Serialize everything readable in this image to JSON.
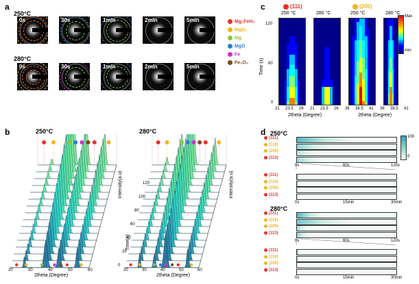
{
  "panels": {
    "a": "a",
    "b": "b",
    "c": "c",
    "d": "d"
  },
  "panel_a": {
    "row1_temp": "250°C",
    "row2_temp": "280°C",
    "row1_times": [
      "0s",
      "30s",
      "1min",
      "2min",
      "5min"
    ],
    "row2_times": [
      "0s",
      "30s",
      "1min",
      "2min",
      "5min"
    ],
    "legend": [
      {
        "label": "Mg₂FeH₆",
        "color": "#e8322b"
      },
      {
        "label": "MgH₂",
        "color": "#f0b51c"
      },
      {
        "label": "Mg",
        "color": "#8cc63f"
      },
      {
        "label": "MgO",
        "color": "#2f7fd0"
      },
      {
        "label": "Fe",
        "color": "#d12fd0"
      },
      {
        "label": "Fe₃O₄",
        "color": "#7b4b1c"
      }
    ]
  },
  "panel_b": {
    "left_temp": "250°C",
    "right_temp": "280°C",
    "xlabel": "2theta (Degree)",
    "ylabel": "Intensity(a.u)",
    "zlabel": "Time(s)",
    "left_xticks": [
      "20",
      "30",
      "40",
      "50",
      "60"
    ],
    "right_xticks": [
      "20",
      "30",
      "40",
      "50",
      "60"
    ],
    "time_ticks": [
      "0",
      "20",
      "40",
      "60",
      "80",
      "100",
      "120"
    ]
  },
  "panel_c": {
    "legend_111": "(111)",
    "legend_200": "(200)",
    "temps": [
      "250 °C",
      "280 °C",
      "250 °C",
      "280 °C"
    ],
    "ylabel": "Time (s)",
    "yticks": [
      "120",
      "60",
      "0"
    ],
    "xticks_111": [
      "21",
      "23.5",
      "26",
      "21",
      "23.5",
      "26"
    ],
    "xticks_200": [
      "36",
      "38.5",
      "41",
      "36",
      "38.5",
      "41"
    ],
    "xlabel_111": "2theta (Degree)",
    "xlabel_200": "2theta (Degree)",
    "cbar_max": "Max",
    "cbar_min": "min"
  },
  "panel_d": {
    "temp1": "250°C",
    "temp2": "280°C",
    "rows": [
      {
        "label": "(111)",
        "color": "#e8322b"
      },
      {
        "label": "(110)",
        "color": "#f0b51c"
      },
      {
        "label": "(200)",
        "color": "#f0b51c"
      },
      {
        "label": "(113)",
        "color": "#e8322b"
      }
    ],
    "axis1": [
      "0s",
      "60s",
      "120s"
    ],
    "axis2": [
      "0s",
      "15min",
      "30min"
    ],
    "cbar_top": "100",
    "cbar_bottom": "0"
  },
  "chart_data": [
    {
      "type": "heatmap",
      "title": "",
      "xlabel": "2theta (Degree)",
      "ylabel": "Time (s)",
      "ylim": [
        0,
        140
      ],
      "series": [
        {
          "name": "(111) 250 °C",
          "x_range": [
            21,
            26
          ]
        },
        {
          "name": "(111) 280 °C",
          "x_range": [
            21,
            26
          ]
        },
        {
          "name": "(200) 250 °C",
          "x_range": [
            36,
            41
          ]
        },
        {
          "name": "(200) 280 °C",
          "x_range": [
            36,
            41
          ]
        }
      ]
    },
    {
      "type": "area",
      "title": "",
      "xlabel": "2theta (Degree)",
      "ylabel": "Intensity(a.u)",
      "xlim": [
        20,
        65
      ],
      "time_range": [
        0,
        120
      ],
      "series": [
        {
          "name": "250°C"
        },
        {
          "name": "280°C"
        }
      ]
    }
  ]
}
